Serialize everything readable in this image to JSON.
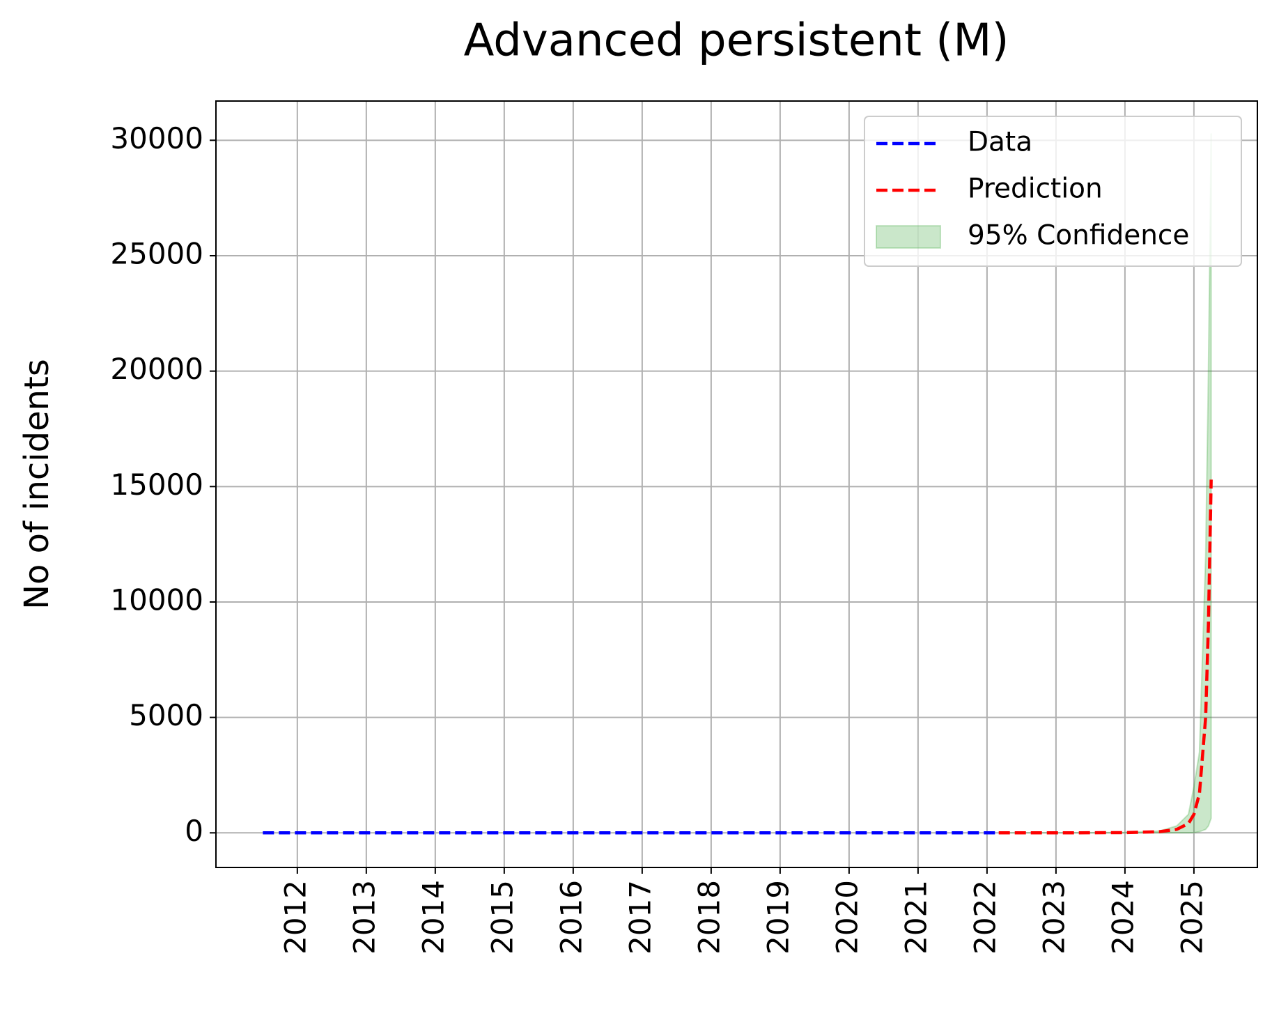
{
  "chart_data": {
    "type": "line",
    "title": "Advanced persistent (M)",
    "y_label": "No of incidents",
    "xlim": [
      2010.82,
      2025.92
    ],
    "ylim": [
      -1500,
      31700
    ],
    "xticks": [
      2012,
      2013,
      2014,
      2015,
      2016,
      2017,
      2018,
      2019,
      2020,
      2021,
      2022,
      2023,
      2024,
      2025
    ],
    "yticks": [
      0,
      5000,
      10000,
      15000,
      20000,
      25000,
      30000
    ],
    "grid": true,
    "legend": "upper right",
    "series": [
      {
        "name": "Data",
        "color": "#0000ff",
        "dashed": true,
        "x": [
          2011.5,
          2012.5,
          2013.5,
          2014.5,
          2015.5,
          2016.5,
          2017.5,
          2018.5,
          2019.5,
          2020.5,
          2021.5,
          2022.17
        ],
        "values": [
          0,
          0,
          0,
          0,
          0,
          0,
          0,
          0,
          0,
          0,
          0,
          0
        ]
      },
      {
        "name": "Prediction",
        "color": "#ff0000",
        "dashed": true,
        "x": [
          2022.17,
          2023,
          2024,
          2024.5,
          2024.75,
          2024.92,
          2025.0,
          2025.08,
          2025.17,
          2025.21,
          2025.25
        ],
        "values": [
          0,
          0,
          10,
          50,
          150,
          400,
          800,
          1700,
          5000,
          9000,
          15300
        ]
      }
    ],
    "band": {
      "name": "95% Confidence",
      "color": "#2ca02c",
      "x": [
        2022.17,
        2023,
        2024,
        2024.5,
        2024.75,
        2024.92,
        2025.0,
        2025.08,
        2025.17,
        2025.21,
        2025.25
      ],
      "lower": [
        0,
        0,
        0,
        0,
        0,
        0,
        10,
        50,
        150,
        300,
        630
      ],
      "upper": [
        0,
        0,
        20,
        80,
        300,
        800,
        2000,
        3500,
        12000,
        20000,
        30300
      ]
    }
  }
}
